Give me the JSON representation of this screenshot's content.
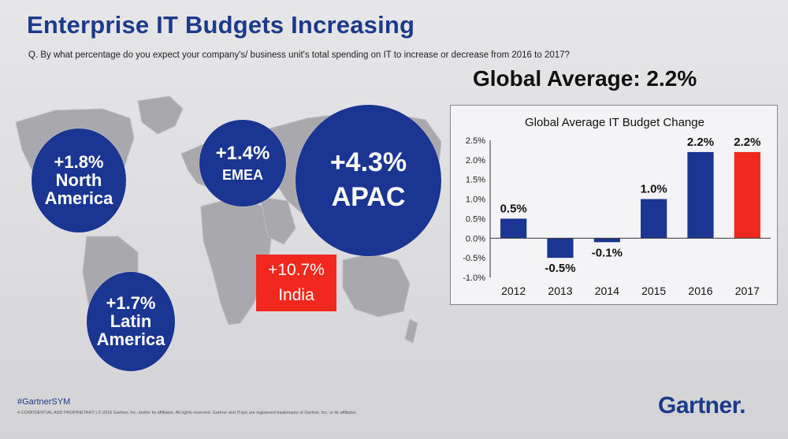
{
  "slide": {
    "title": "Enterprise IT Budgets Increasing",
    "question": "Q. By what percentage do you expect your company's/ business unit's total spending on IT to increase or decrease from 2016 to 2017?",
    "global_average": "Global Average: 2.2%"
  },
  "regions": {
    "north_america": {
      "value": "+1.8%",
      "label_line1": "North",
      "label_line2": "America"
    },
    "emea": {
      "value": "+1.4%",
      "label": "EMEA"
    },
    "apac": {
      "value": "+4.3%",
      "label": "APAC"
    },
    "latin_america": {
      "value": "+1.7%",
      "label_line1": "Latin",
      "label_line2": "America"
    },
    "india": {
      "value": "+10.7%",
      "label": "India"
    }
  },
  "colors": {
    "primary": "#1a3592",
    "highlight": "#f0281e",
    "title": "#1b3a8a"
  },
  "chart_data": {
    "type": "bar",
    "title": "Global Average IT Budget Change",
    "categories": [
      "2012",
      "2013",
      "2014",
      "2015",
      "2016",
      "2017"
    ],
    "values": [
      0.5,
      -0.5,
      -0.1,
      1.0,
      2.2,
      2.2
    ],
    "data_labels": [
      "0.5%",
      "-0.5%",
      "-0.1%",
      "1.0%",
      "2.2%",
      "2.2%"
    ],
    "bar_colors": [
      "#1a3592",
      "#1a3592",
      "#1a3592",
      "#1a3592",
      "#1a3592",
      "#f0281e"
    ],
    "ylim": [
      -1.0,
      2.5
    ],
    "yticks": [
      -1.0,
      -0.5,
      0.0,
      0.5,
      1.0,
      1.5,
      2.0,
      2.5
    ],
    "ytick_labels": [
      "-1.0%",
      "-0.5%",
      "0.0%",
      "0.5%",
      "1.0%",
      "1.5%",
      "2.0%",
      "2.5%"
    ],
    "xlabel": "",
    "ylabel": "",
    "grid": false,
    "legend": "none"
  },
  "footer": {
    "hashtag": "#GartnerSYM",
    "legal": "4   CONFIDENTIAL AND PROPRIETARY  |  © 2016 Gartner, Inc. and/or its affiliates. All rights reserved. Gartner and ITxpo are registered trademarks of Gartner, Inc. or its affiliates.",
    "logo": "Gartner."
  }
}
